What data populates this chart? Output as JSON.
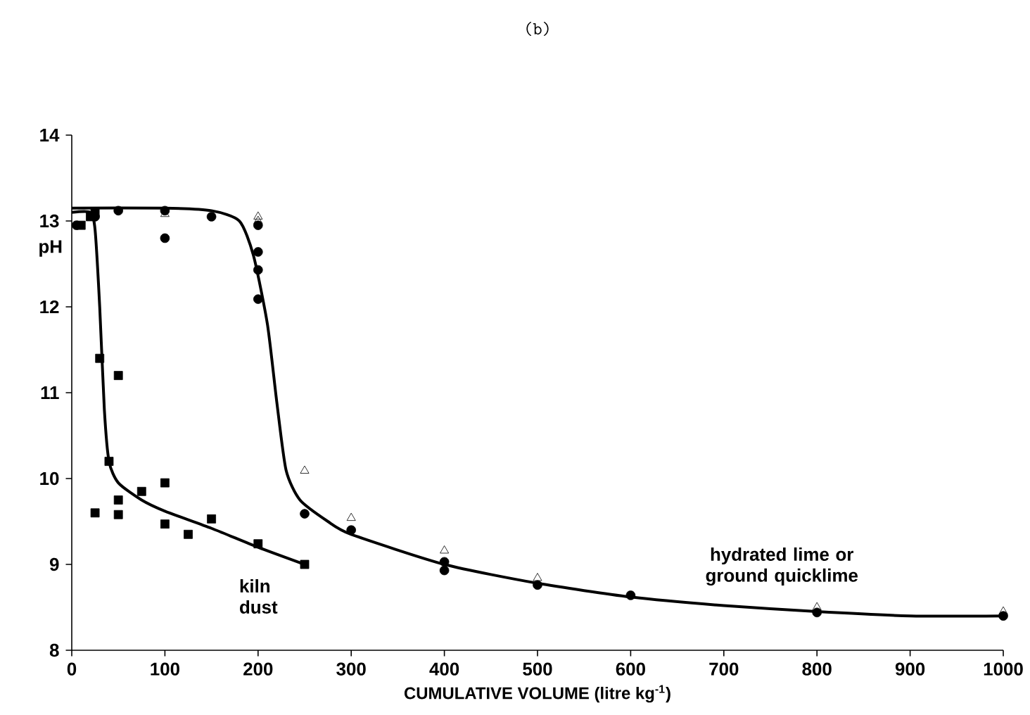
{
  "chart_data": {
    "type": "scatter",
    "title": "(b)",
    "xlabel": "CUMULATIVE VOLUME  (litre kg$^{-1}$)",
    "ylabel": "pH",
    "xlim": [
      0,
      1000
    ],
    "ylim": [
      8,
      14
    ],
    "xticks": [
      0,
      100,
      200,
      300,
      400,
      500,
      600,
      700,
      800,
      900,
      1000
    ],
    "yticks": [
      8,
      9,
      10,
      11,
      12,
      13,
      14
    ],
    "grid": false,
    "series": [
      {
        "marker": "square",
        "color": "#000000",
        "x": [
          10,
          20,
          25,
          30,
          25,
          40,
          50,
          50,
          50,
          75,
          100,
          100,
          125,
          150,
          200,
          250
        ],
        "values": [
          12.95,
          13.05,
          13.1,
          11.4,
          9.6,
          10.2,
          11.2,
          9.75,
          9.58,
          9.85,
          9.95,
          9.47,
          9.35,
          9.53,
          9.24,
          9.0
        ]
      },
      {
        "marker": "circle",
        "color": "#000000",
        "x": [
          5,
          25,
          50,
          100,
          100,
          150,
          200,
          200,
          200,
          200,
          250,
          300,
          400,
          400,
          500,
          600,
          800,
          1000
        ],
        "values": [
          12.95,
          13.05,
          13.12,
          13.12,
          12.8,
          13.05,
          12.95,
          12.64,
          12.43,
          12.09,
          9.59,
          9.4,
          9.03,
          8.93,
          8.76,
          8.64,
          8.44,
          8.4
        ]
      },
      {
        "marker": "triangle",
        "color": "#000000",
        "x": [
          100,
          200,
          200,
          250,
          300,
          400,
          500,
          800,
          1000
        ],
        "values": [
          13.08,
          13.05,
          13.0,
          10.09,
          9.54,
          9.16,
          8.84,
          8.5,
          8.45
        ]
      },
      {
        "type": "line",
        "marker": "none",
        "color": "#000000",
        "x": [
          0,
          20,
          25,
          30,
          35,
          40,
          50,
          75,
          100,
          150,
          200,
          250
        ],
        "values": [
          13.1,
          13.1,
          12.9,
          12.0,
          10.8,
          10.2,
          9.95,
          9.75,
          9.62,
          9.42,
          9.2,
          9.0
        ]
      },
      {
        "type": "line",
        "marker": "none",
        "color": "#000000",
        "x": [
          0,
          100,
          150,
          180,
          195,
          210,
          220,
          230,
          245,
          275,
          300,
          400,
          500,
          600,
          700,
          800,
          900,
          1000
        ],
        "values": [
          13.15,
          13.15,
          13.12,
          13.0,
          12.6,
          11.8,
          10.9,
          10.1,
          9.75,
          9.5,
          9.35,
          9.0,
          8.78,
          8.62,
          8.52,
          8.45,
          8.4,
          8.4
        ]
      }
    ],
    "annotations": [
      {
        "text": "kiln dust",
        "x": 250,
        "y": 9.0
      },
      {
        "text": "hydrated lime or ground quicklime",
        "x": 800,
        "y": 8.45
      }
    ]
  }
}
